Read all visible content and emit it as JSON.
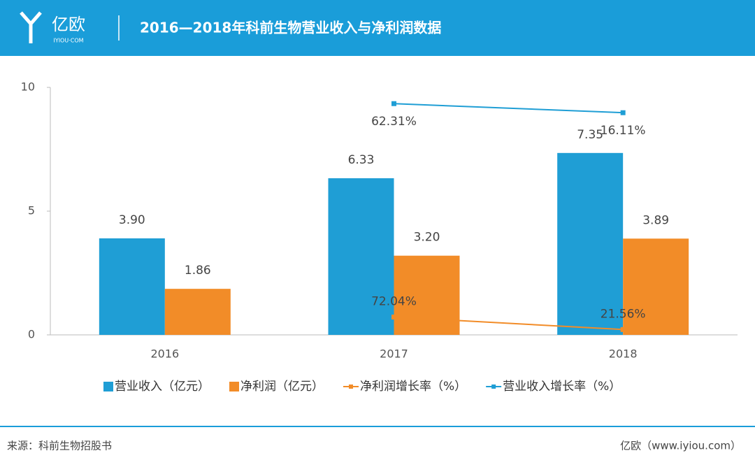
{
  "logo": {
    "name": "亿欧",
    "domain": "IYIOU·COM"
  },
  "chart_data": {
    "type": "bar",
    "title": "2016—2018年科前生物营业收入与净利润数据",
    "categories": [
      "2016",
      "2017",
      "2018"
    ],
    "ylim": [
      0,
      10
    ],
    "yticks": [
      0,
      5,
      10
    ],
    "y2lim": [
      -1115,
      145
    ],
    "series": [
      {
        "name": "营业收入（亿元）",
        "type": "bar",
        "color": "#1f9ed5",
        "values": [
          3.9,
          6.33,
          7.35
        ],
        "value_labels": [
          "3.90",
          "6.33",
          "7.35"
        ]
      },
      {
        "name": "净利润（亿元）",
        "type": "bar",
        "color": "#f28c28",
        "values": [
          1.86,
          3.2,
          3.89
        ],
        "value_labels": [
          "1.86",
          "3.20",
          "3.89"
        ]
      },
      {
        "name": "净利润增长率（%）",
        "type": "line",
        "color": "#f28c28",
        "values": [
          null,
          0.7204,
          0.2156
        ],
        "value_labels": [
          null,
          "72.04%",
          "21.56%"
        ]
      },
      {
        "name": "营业收入增长率（%）",
        "type": "line",
        "axis": "y2",
        "color": "#1f9ed5",
        "values": [
          null,
          62.31,
          16.11
        ],
        "value_labels": [
          null,
          "62.31%",
          "16.11%"
        ]
      }
    ]
  },
  "footer": {
    "source": "来源：科前生物招股书",
    "brand": "亿欧（www.iyiou.com）"
  }
}
